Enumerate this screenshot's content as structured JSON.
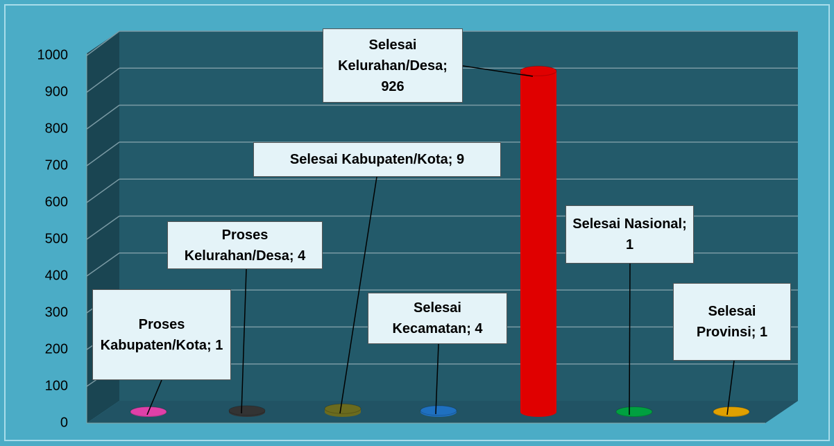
{
  "chart_data": {
    "type": "bar3d",
    "value_labels": [
      "Proses Kabupaten/Kota; 1",
      "Proses Kelurahan/Desa; 4",
      "Selesai Kabupaten/Kota; 9",
      "Selesai Kecamatan; 4",
      "Selesai Kelurahan/Desa; 926",
      "Selesai Nasional; 1",
      "Selesai Provinsi; 1"
    ],
    "values": [
      1,
      4,
      9,
      4,
      926,
      1,
      1
    ],
    "colors": [
      "#e040a8",
      "#333333",
      "#6b6b1e",
      "#1f70c0",
      "#e00000",
      "#00a040",
      "#e0a000"
    ],
    "ylim": [
      0,
      1000
    ],
    "yticks": [
      0,
      100,
      200,
      300,
      400,
      500,
      600,
      700,
      800,
      900,
      1000
    ],
    "grid": true
  }
}
